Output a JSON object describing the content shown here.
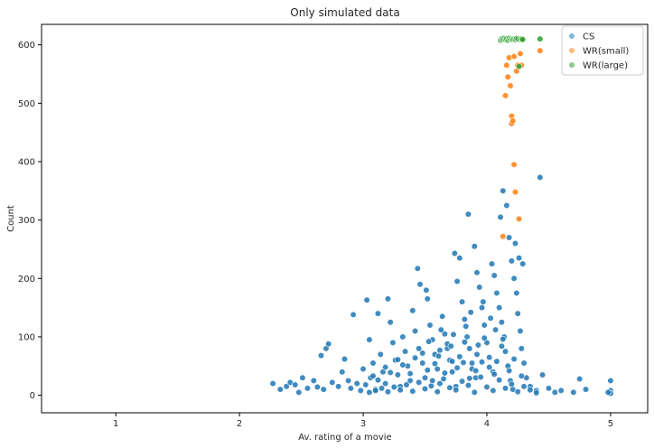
{
  "chart_data": {
    "type": "scatter",
    "title": "Only simulated data",
    "xlabel": "Av. rating of a movie",
    "ylabel": "Count",
    "xlim": [
      0.4,
      5.3
    ],
    "ylim": [
      -30,
      635
    ],
    "xticks": [
      1,
      2,
      3,
      4,
      5
    ],
    "yticks": [
      0,
      100,
      200,
      300,
      400,
      500,
      600
    ],
    "grid": false,
    "legend_placement": "top-right",
    "series": [
      {
        "name": "CS",
        "color": "#1f77b4",
        "marker": "circle",
        "points": [
          [
            2.27,
            20
          ],
          [
            2.33,
            10
          ],
          [
            2.38,
            15
          ],
          [
            2.41,
            22
          ],
          [
            2.45,
            18
          ],
          [
            2.48,
            5
          ],
          [
            2.51,
            30
          ],
          [
            2.55,
            12
          ],
          [
            2.6,
            25
          ],
          [
            2.63,
            14
          ],
          [
            2.66,
            68
          ],
          [
            2.68,
            10
          ],
          [
            2.7,
            80
          ],
          [
            2.72,
            88
          ],
          [
            2.75,
            22
          ],
          [
            2.8,
            15
          ],
          [
            2.83,
            40
          ],
          [
            2.85,
            62
          ],
          [
            2.88,
            25
          ],
          [
            2.9,
            12
          ],
          [
            2.92,
            138
          ],
          [
            2.95,
            20
          ],
          [
            2.98,
            8
          ],
          [
            3.0,
            45
          ],
          [
            3.02,
            18
          ],
          [
            3.03,
            163
          ],
          [
            3.05,
            95
          ],
          [
            3.06,
            30
          ],
          [
            3.08,
            55
          ],
          [
            3.1,
            10
          ],
          [
            3.12,
            140
          ],
          [
            3.14,
            70
          ],
          [
            3.16,
            40
          ],
          [
            3.18,
            20
          ],
          [
            3.2,
            165
          ],
          [
            3.22,
            125
          ],
          [
            3.24,
            90
          ],
          [
            3.26,
            60
          ],
          [
            3.28,
            35
          ],
          [
            3.3,
            15
          ],
          [
            3.32,
            100
          ],
          [
            3.34,
            75
          ],
          [
            3.36,
            50
          ],
          [
            3.38,
            25
          ],
          [
            3.4,
            145
          ],
          [
            3.42,
            110
          ],
          [
            3.44,
            217
          ],
          [
            3.45,
            80
          ],
          [
            3.46,
            190
          ],
          [
            3.48,
            55
          ],
          [
            3.5,
            30
          ],
          [
            3.51,
            180
          ],
          [
            3.52,
            165
          ],
          [
            3.54,
            120
          ],
          [
            3.56,
            95
          ],
          [
            3.58,
            70
          ],
          [
            3.6,
            45
          ],
          [
            3.62,
            20
          ],
          [
            3.64,
            135
          ],
          [
            3.66,
            105
          ],
          [
            3.68,
            80
          ],
          [
            3.7,
            60
          ],
          [
            3.72,
            40
          ],
          [
            3.74,
            243
          ],
          [
            3.75,
            15
          ],
          [
            3.76,
            195
          ],
          [
            3.78,
            235
          ],
          [
            3.8,
            160
          ],
          [
            3.82,
            130
          ],
          [
            3.84,
            100
          ],
          [
            3.85,
            310
          ],
          [
            3.86,
            80
          ],
          [
            3.88,
            55
          ],
          [
            3.9,
            255
          ],
          [
            3.91,
            30
          ],
          [
            3.92,
            210
          ],
          [
            3.94,
            185
          ],
          [
            3.96,
            150
          ],
          [
            3.98,
            120
          ],
          [
            4.0,
            90
          ],
          [
            4.02,
            65
          ],
          [
            4.04,
            225
          ],
          [
            4.05,
            40
          ],
          [
            4.06,
            205
          ],
          [
            4.08,
            175
          ],
          [
            4.1,
            150
          ],
          [
            4.11,
            305
          ],
          [
            4.12,
            125
          ],
          [
            4.13,
            350
          ],
          [
            4.14,
            100
          ],
          [
            4.15,
            75
          ],
          [
            4.16,
            325
          ],
          [
            4.17,
            50
          ],
          [
            4.18,
            270
          ],
          [
            4.19,
            25
          ],
          [
            4.2,
            230
          ],
          [
            4.21,
            10
          ],
          [
            4.22,
            200
          ],
          [
            4.23,
            260
          ],
          [
            4.24,
            175
          ],
          [
            4.25,
            140
          ],
          [
            4.26,
            235
          ],
          [
            4.27,
            110
          ],
          [
            4.28,
            80
          ],
          [
            4.29,
            225
          ],
          [
            4.3,
            55
          ],
          [
            4.32,
            30
          ],
          [
            4.35,
            15
          ],
          [
            4.4,
            8
          ],
          [
            4.43,
            373
          ],
          [
            4.45,
            35
          ],
          [
            4.5,
            12
          ],
          [
            4.55,
            5
          ],
          [
            4.6,
            8
          ],
          [
            4.7,
            5
          ],
          [
            4.75,
            28
          ],
          [
            4.8,
            10
          ],
          [
            5.0,
            25
          ],
          [
            5.0,
            8
          ],
          [
            5.0,
            3
          ],
          [
            4.98,
            5
          ],
          [
            3.05,
            5
          ],
          [
            3.1,
            8
          ],
          [
            3.15,
            12
          ],
          [
            3.2,
            6
          ],
          [
            3.25,
            14
          ],
          [
            3.3,
            9
          ],
          [
            3.35,
            18
          ],
          [
            3.4,
            7
          ],
          [
            3.45,
            22
          ],
          [
            3.5,
            11
          ],
          [
            3.55,
            16
          ],
          [
            3.6,
            6
          ],
          [
            3.65,
            28
          ],
          [
            3.7,
            13
          ],
          [
            3.75,
            9
          ],
          [
            3.8,
            24
          ],
          [
            3.85,
            17
          ],
          [
            3.9,
            5
          ],
          [
            3.95,
            31
          ],
          [
            4.0,
            14
          ],
          [
            4.05,
            8
          ],
          [
            4.1,
            26
          ],
          [
            4.15,
            12
          ],
          [
            4.2,
            19
          ],
          [
            4.25,
            6
          ],
          [
            4.3,
            15
          ],
          [
            4.35,
            9
          ],
          [
            4.4,
            4
          ],
          [
            3.08,
            33
          ],
          [
            3.18,
            48
          ],
          [
            3.28,
            61
          ],
          [
            3.38,
            37
          ],
          [
            3.48,
            72
          ],
          [
            3.58,
            54
          ],
          [
            3.68,
            88
          ],
          [
            3.78,
            66
          ],
          [
            3.88,
            45
          ],
          [
            3.98,
            98
          ],
          [
            4.08,
            58
          ],
          [
            4.18,
            42
          ],
          [
            4.28,
            33
          ],
          [
            3.12,
            26
          ],
          [
            3.22,
            39
          ],
          [
            3.32,
            52
          ],
          [
            3.42,
            64
          ],
          [
            3.52,
            43
          ],
          [
            3.62,
            77
          ],
          [
            3.72,
            58
          ],
          [
            3.82,
            91
          ],
          [
            3.92,
            70
          ],
          [
            4.02,
            48
          ],
          [
            4.12,
            84
          ],
          [
            4.22,
            62
          ],
          [
            3.56,
            25
          ],
          [
            3.66,
            38
          ],
          [
            3.76,
            47
          ],
          [
            3.86,
            29
          ],
          [
            3.96,
            57
          ],
          [
            4.06,
            36
          ],
          [
            3.61,
            67
          ],
          [
            3.71,
            84
          ],
          [
            3.81,
            56
          ],
          [
            3.91,
            42
          ],
          [
            3.53,
            92
          ],
          [
            3.63,
            112
          ],
          [
            3.73,
            104
          ],
          [
            3.83,
            118
          ],
          [
            3.93,
            86
          ],
          [
            4.03,
            132
          ],
          [
            4.13,
            96
          ],
          [
            3.87,
            142
          ],
          [
            3.97,
            160
          ],
          [
            4.07,
            112
          ]
        ]
      },
      {
        "name": "WR(small)",
        "color": "#ff7f0e",
        "marker": "circle",
        "points": [
          [
            4.13,
            272
          ],
          [
            4.15,
            513
          ],
          [
            4.16,
            565
          ],
          [
            4.17,
            545
          ],
          [
            4.18,
            578
          ],
          [
            4.19,
            530
          ],
          [
            4.2,
            478
          ],
          [
            4.2,
            465
          ],
          [
            4.21,
            470
          ],
          [
            4.22,
            580
          ],
          [
            4.22,
            395
          ],
          [
            4.23,
            348
          ],
          [
            4.24,
            555
          ],
          [
            4.25,
            565
          ],
          [
            4.26,
            302
          ],
          [
            4.27,
            585
          ],
          [
            4.28,
            565
          ],
          [
            4.43,
            590
          ]
        ]
      },
      {
        "name": "WR(large)",
        "color": "#2ca02c",
        "marker": "circle",
        "points": [
          [
            4.11,
            608
          ],
          [
            4.12,
            610
          ],
          [
            4.13,
            609
          ],
          [
            4.14,
            611
          ],
          [
            4.15,
            609
          ],
          [
            4.16,
            610
          ],
          [
            4.17,
            608
          ],
          [
            4.18,
            611
          ],
          [
            4.19,
            609
          ],
          [
            4.2,
            610
          ],
          [
            4.21,
            609
          ],
          [
            4.22,
            610
          ],
          [
            4.23,
            609
          ],
          [
            4.24,
            611
          ],
          [
            4.25,
            610
          ],
          [
            4.26,
            563
          ],
          [
            4.27,
            609
          ],
          [
            4.28,
            610
          ],
          [
            4.29,
            609
          ],
          [
            4.43,
            610
          ]
        ]
      }
    ]
  }
}
